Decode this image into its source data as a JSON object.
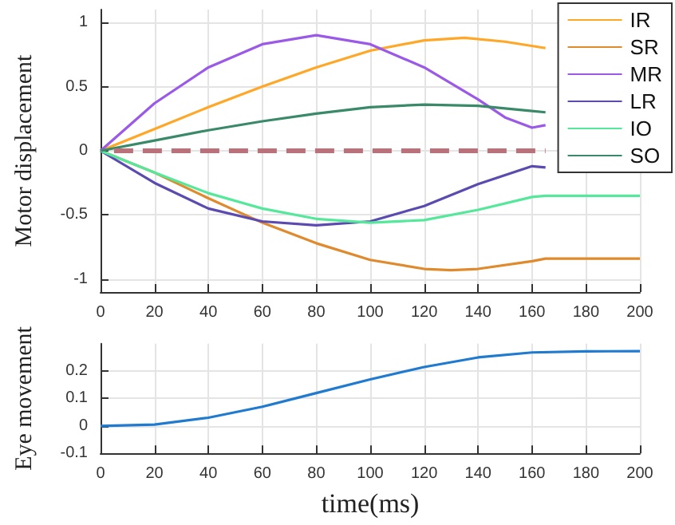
{
  "chart_data": [
    {
      "type": "line",
      "ylabel": "Motor displacement",
      "xlim": [
        0,
        200
      ],
      "xticks": [
        0,
        20,
        40,
        60,
        80,
        100,
        120,
        140,
        160,
        180,
        200
      ],
      "ylim": [
        -1.1,
        1.1
      ],
      "yticks": [
        -1,
        -0.5,
        0,
        0.5,
        1
      ],
      "grid": true,
      "legend": "top right",
      "marker": "none",
      "series": [
        {
          "name": "IR",
          "color": "#ffa726",
          "x": [
            0,
            20,
            40,
            60,
            80,
            100,
            120,
            135,
            150,
            165
          ],
          "values": [
            0,
            0.17,
            0.34,
            0.5,
            0.65,
            0.78,
            0.86,
            0.88,
            0.85,
            0.8
          ]
        },
        {
          "name": "SR",
          "color": "#e08a2e",
          "x": [
            0,
            20,
            40,
            60,
            80,
            100,
            120,
            130,
            140,
            160,
            165,
            200
          ],
          "values": [
            0,
            -0.17,
            -0.37,
            -0.56,
            -0.72,
            -0.85,
            -0.92,
            -0.93,
            -0.92,
            -0.86,
            -0.84,
            -0.84
          ]
        },
        {
          "name": "MR",
          "color": "#9b59e8",
          "x": [
            0,
            20,
            40,
            60,
            80,
            100,
            120,
            140,
            150,
            160,
            165
          ],
          "values": [
            0,
            0.37,
            0.65,
            0.83,
            0.9,
            0.83,
            0.65,
            0.4,
            0.26,
            0.18,
            0.2
          ]
        },
        {
          "name": "LR",
          "color": "#5b4bb0",
          "x": [
            0,
            20,
            40,
            60,
            80,
            100,
            120,
            140,
            160,
            165
          ],
          "values": [
            0,
            -0.25,
            -0.45,
            -0.55,
            -0.58,
            -0.55,
            -0.43,
            -0.26,
            -0.12,
            -0.13
          ]
        },
        {
          "name": "IO",
          "color": "#55e89a",
          "x": [
            0,
            20,
            40,
            60,
            80,
            100,
            120,
            140,
            160,
            165,
            200
          ],
          "values": [
            0,
            -0.17,
            -0.33,
            -0.45,
            -0.53,
            -0.56,
            -0.54,
            -0.46,
            -0.36,
            -0.35,
            -0.35
          ]
        },
        {
          "name": "SO",
          "color": "#3a8a6a",
          "x": [
            0,
            20,
            40,
            60,
            80,
            100,
            120,
            140,
            160,
            165
          ],
          "values": [
            0,
            0.08,
            0.16,
            0.23,
            0.29,
            0.34,
            0.36,
            0.35,
            0.31,
            0.3
          ]
        },
        {
          "color": "#b9727a",
          "line_style": "dashed",
          "x": [
            5,
            165
          ],
          "values": [
            0,
            0
          ]
        }
      ]
    },
    {
      "type": "line",
      "ylabel": "Eye movement",
      "xlabel": "time(ms)",
      "xlim": [
        0,
        200
      ],
      "xticks": [
        0,
        20,
        40,
        60,
        80,
        100,
        120,
        140,
        160,
        180,
        200
      ],
      "ylim": [
        -0.1,
        0.3
      ],
      "yticks": [
        -0.1,
        0,
        0.1,
        0.2
      ],
      "grid": true,
      "marker": "none",
      "series": [
        {
          "color": "#1f7ad0",
          "x": [
            0,
            20,
            40,
            60,
            80,
            100,
            120,
            140,
            160,
            180,
            200
          ],
          "values": [
            0,
            0.005,
            0.03,
            0.07,
            0.12,
            0.17,
            0.215,
            0.25,
            0.268,
            0.272,
            0.273
          ]
        }
      ]
    }
  ]
}
